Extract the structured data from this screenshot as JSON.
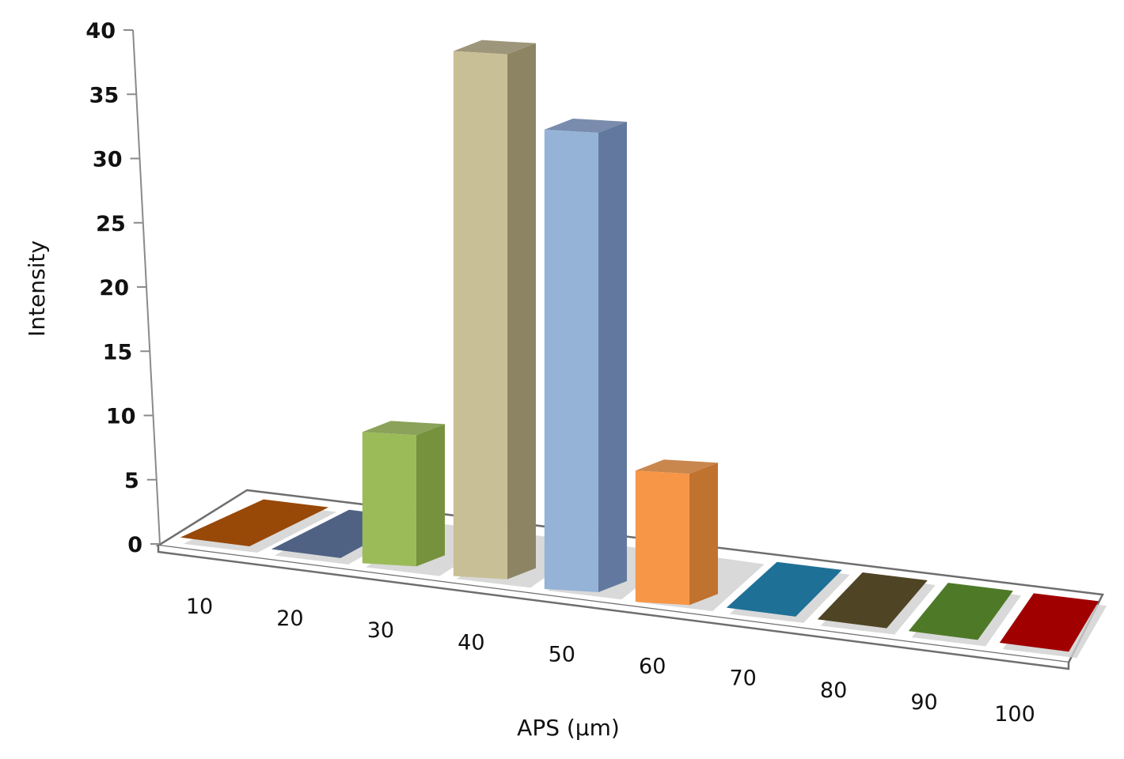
{
  "chart_data": {
    "type": "bar",
    "subtype": "3d-column",
    "title": "",
    "xlabel": "APS (µm)",
    "ylabel": "Intensity",
    "categories": [
      "10",
      "20",
      "30",
      "40",
      "50",
      "60",
      "70",
      "80",
      "90",
      "100"
    ],
    "values": [
      0,
      0,
      10,
      40,
      35,
      10,
      0,
      0,
      0,
      0
    ],
    "colors": [
      "#984807",
      "#4f6284",
      "#9bbb59",
      "#c9bf96",
      "#95b3d7",
      "#f79646",
      "#1f7097",
      "#4f4525",
      "#4e7a28",
      "#a00000"
    ],
    "side_colors": [
      "#6e3405",
      "#3b4a63",
      "#76923c",
      "#8d8463",
      "#62789f",
      "#c0722f",
      "#175673",
      "#3a331b",
      "#3a5c1e",
      "#780000"
    ],
    "yticks": [
      "0",
      "5",
      "10",
      "15",
      "20",
      "25",
      "30",
      "35",
      "40"
    ],
    "ylim": [
      0,
      40
    ],
    "grid": false,
    "legend": "none"
  }
}
